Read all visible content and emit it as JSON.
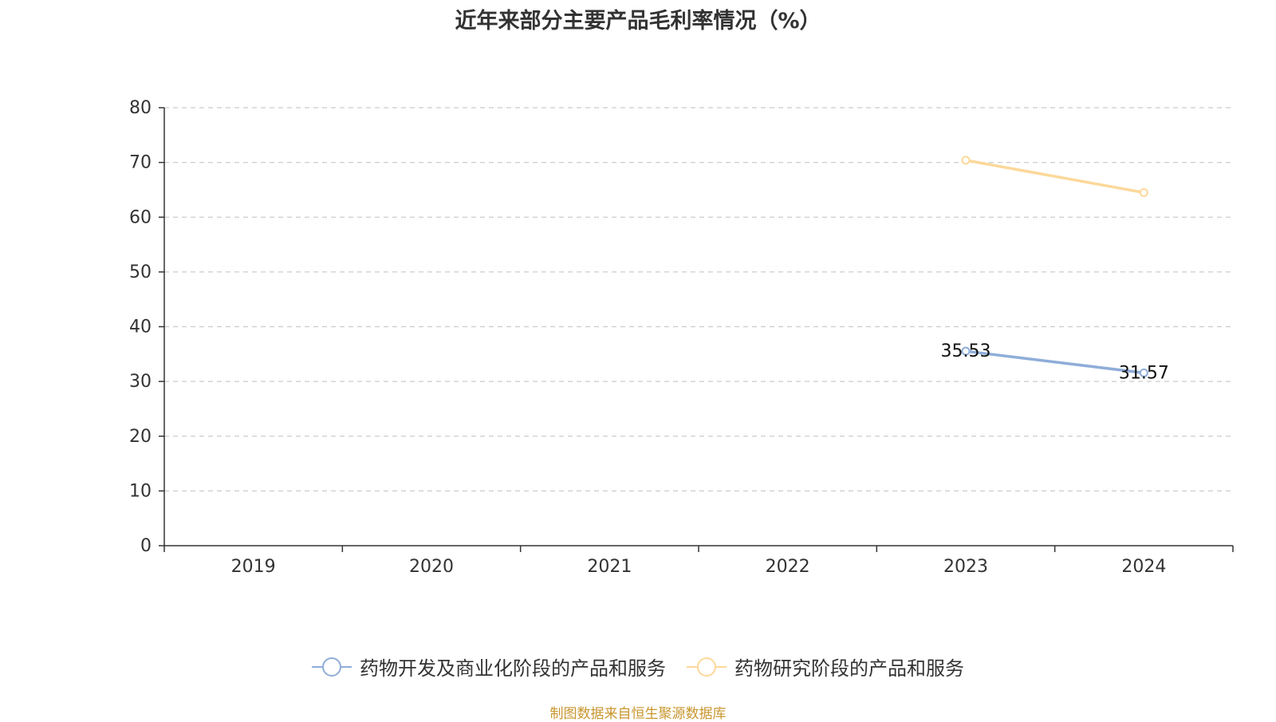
{
  "chart_data": {
    "type": "line",
    "title": "近年来部分主要产品毛利率情况（%）",
    "categories": [
      "2019",
      "2020",
      "2021",
      "2022",
      "2023",
      "2024"
    ],
    "yticks": [
      "0",
      "10",
      "20",
      "30",
      "40",
      "50",
      "60",
      "70",
      "80"
    ],
    "ylim": [
      0,
      80
    ],
    "grid": true,
    "legend_position": "bottom",
    "series": [
      {
        "name": "药物开发及商业化阶段的产品和服务",
        "color": "#8fadd9",
        "values": [
          null,
          null,
          null,
          null,
          35.53,
          31.57
        ],
        "labels": [
          "",
          "",
          "",
          "",
          "35.53",
          "31.57"
        ]
      },
      {
        "name": "药物研究阶段的产品和服务",
        "color": "#fcd89a",
        "values": [
          null,
          null,
          null,
          null,
          70.4,
          64.5
        ],
        "labels": [
          "",
          "",
          "",
          "",
          "",
          ""
        ]
      }
    ]
  },
  "source": "制图数据来自恒生聚源数据库"
}
